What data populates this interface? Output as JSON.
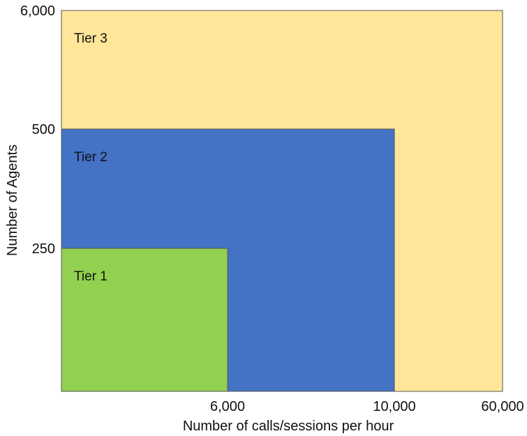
{
  "chart_data": {
    "type": "area",
    "xlabel": "Number of calls/sessions per hour",
    "ylabel": "Number of Agents",
    "x_ticks": [
      "6,000",
      "10,000",
      "60,000"
    ],
    "y_ticks": [
      "250",
      "500",
      "6,000"
    ],
    "tiers": [
      {
        "label": "Tier 3",
        "max_calls_per_hour": 60000,
        "max_agents": 6000,
        "color": "#FFE699"
      },
      {
        "label": "Tier 2",
        "max_calls_per_hour": 10000,
        "max_agents": 500,
        "color": "#4472C4"
      },
      {
        "label": "Tier 1",
        "max_calls_per_hour": 6000,
        "max_agents": 250,
        "color": "#92D050"
      }
    ],
    "grid": false,
    "legend": "none"
  }
}
